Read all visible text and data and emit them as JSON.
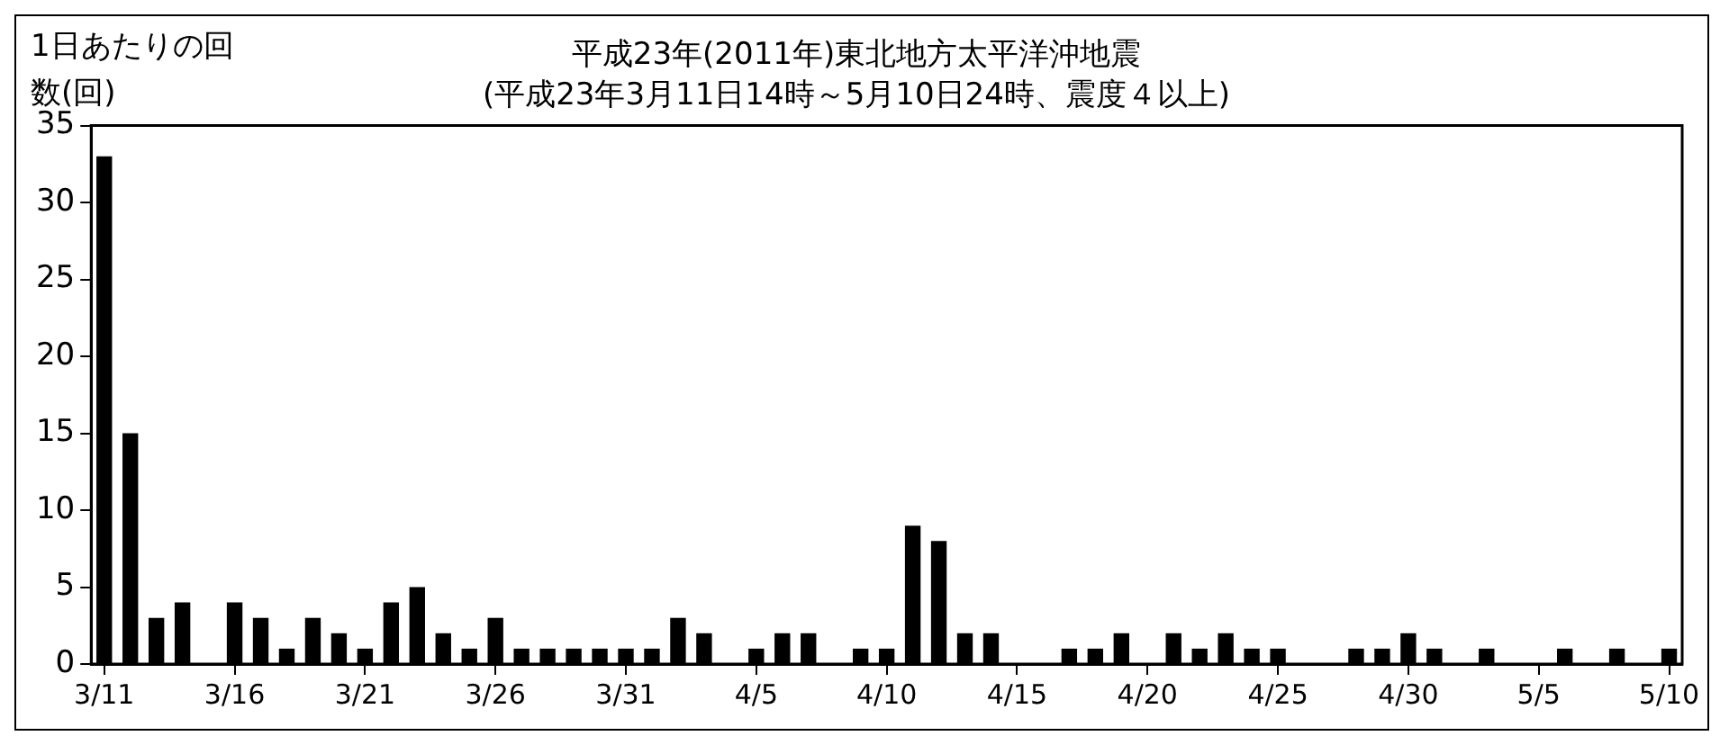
{
  "chart_data": {
    "type": "bar",
    "title": "平成23年(2011年)東北地方太平洋沖地震",
    "subtitle": "(平成23年3月11日14時～5月10日24時、震度４以上)",
    "ylabel": "1日あたりの回数(回)",
    "categories": [
      "3/11",
      null,
      null,
      null,
      null,
      "3/16",
      null,
      null,
      null,
      null,
      "3/21",
      null,
      null,
      null,
      null,
      "3/26",
      null,
      null,
      null,
      null,
      "3/31",
      null,
      null,
      null,
      null,
      "4/5",
      null,
      null,
      null,
      null,
      "4/10",
      null,
      null,
      null,
      null,
      "4/15",
      null,
      null,
      null,
      null,
      "4/20",
      null,
      null,
      null,
      null,
      "4/25",
      null,
      null,
      null,
      null,
      "4/30",
      null,
      null,
      null,
      null,
      "5/5",
      null,
      null,
      null,
      null,
      "5/10"
    ],
    "values": [
      33,
      15,
      3,
      4,
      0,
      4,
      3,
      1,
      3,
      2,
      1,
      4,
      5,
      2,
      1,
      3,
      1,
      1,
      1,
      1,
      1,
      1,
      3,
      2,
      0,
      1,
      2,
      2,
      0,
      1,
      1,
      9,
      8,
      2,
      2,
      0,
      0,
      1,
      1,
      2,
      0,
      2,
      1,
      2,
      1,
      1,
      0,
      0,
      1,
      1,
      2,
      1,
      0,
      1,
      0,
      0,
      1,
      0,
      1,
      0,
      1
    ],
    "color": "#000000",
    "ylim": [
      0,
      35
    ],
    "yticks": [
      0,
      5,
      10,
      15,
      20,
      25,
      30,
      35
    ],
    "grid": false,
    "legend": false
  }
}
